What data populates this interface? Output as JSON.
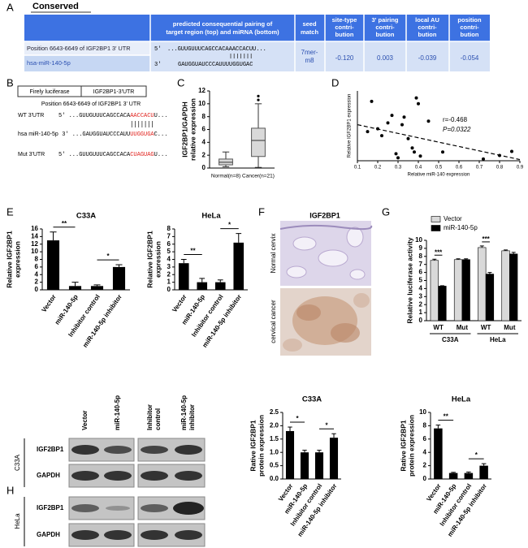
{
  "panel_labels": [
    "A",
    "B",
    "C",
    "D",
    "E",
    "F",
    "G",
    "H"
  ],
  "table_a": {
    "title": "Conserved",
    "header": [
      [
        "predicted consequential pairing of",
        "target region (top) and miRNA (bottom)"
      ],
      [
        "seed",
        "match"
      ],
      [
        "site-type",
        "contri-",
        "bution"
      ],
      [
        "3' pairing",
        "contri-",
        "bution"
      ],
      [
        "local AU",
        "contri-",
        "bution"
      ],
      [
        "position",
        "contri-",
        "bution"
      ]
    ],
    "row": {
      "target": "Position 6643-6649 of IGF2BP1 3' UTR",
      "mirna": "hsa-miR-140-5p",
      "top_end": "5'",
      "top_seq": "...GUUGUUUCAGCCACAAACCACUU...",
      "bottom_end": "3'",
      "bottom_seq": "GAUGGUAUCCCAUUUUGGUGAC",
      "seed_match": [
        "7mer-",
        "m8"
      ],
      "site_type": "-0.120",
      "pairing_3p": "0.003",
      "local_au": "-0.039",
      "position": "-0.054"
    }
  },
  "diagram_b": {
    "reporter": "Firely luciferase",
    "utr": "IGF2BP1-3'UTR",
    "site": "Position 6643-6649 of IGF2BP1 3' UTR",
    "rows": [
      {
        "label": "WT 3'UTR",
        "prefix": "5' ...GUUGUUUCAGCCACA",
        "site": "AACCACU",
        "suffix": "U..."
      },
      {
        "label": "hsa miR-140-5p",
        "prefix": "3' ...GAUGGUAUCCCAUU",
        "site": "UUGGUGA",
        "suffix": "C..."
      },
      {
        "label": "Mut 3'UTR",
        "prefix": "5' ...GUUGUUUCAGCCACA",
        "site": "CUAGUAG",
        "suffix": "U..."
      }
    ]
  },
  "images_f": {
    "title": "IGF2BP1",
    "rows": [
      "Normal cervix",
      "cervical cancer"
    ]
  },
  "blot_h": {
    "lanes": [
      [
        "Vector"
      ],
      [
        "miR-140-5p"
      ],
      [
        "Inhibitor",
        "control"
      ],
      [
        "miR-140-5p",
        "inhibitor"
      ]
    ],
    "cell_lines": [
      "C33A",
      "HeLa"
    ],
    "proteins": [
      "IGF2BP1",
      "GAPDH"
    ]
  },
  "chart_data": [
    {
      "type": "box",
      "y_label": [
        "IGF2BP1/GAPDH",
        "relative expression"
      ],
      "categories": [
        "Normal(n=8)",
        "Cancer(n=21)"
      ],
      "boxes": [
        {
          "min": 0.2,
          "q1": 0.5,
          "median": 0.9,
          "q3": 1.4,
          "max": 2.5,
          "outliers": []
        },
        {
          "min": 0.1,
          "q1": 1.8,
          "median": 4.3,
          "q3": 6.2,
          "max": 10,
          "outliers": [
            10.6,
            11.2
          ]
        }
      ],
      "color": "#d9d9d9",
      "ylim": [
        0,
        12
      ],
      "yticks": [
        0,
        2,
        4,
        6,
        8,
        10,
        12
      ]
    },
    {
      "type": "scatter",
      "x_label": "Relative miR-140 expression",
      "y_label": "Relative IGF2BP1 expression",
      "annotations": [
        "r=-0.468",
        "P=0.0322"
      ],
      "x": [
        0.15,
        0.17,
        0.2,
        0.22,
        0.25,
        0.27,
        0.29,
        0.3,
        0.32,
        0.33,
        0.35,
        0.37,
        0.38,
        0.39,
        0.4,
        0.41,
        0.45,
        0.52,
        0.72,
        0.8,
        0.86
      ],
      "y": [
        5,
        10.2,
        5.5,
        4.3,
        6.5,
        7.8,
        1.2,
        0.5,
        6.2,
        7.5,
        3.8,
        2.2,
        1.5,
        10.8,
        9.8,
        0.8,
        6.8,
        1.5,
        0.3,
        0.9,
        1.6
      ],
      "color": "#000000",
      "trend": {
        "x": [
          0.1,
          0.9
        ],
        "y": [
          6.2,
          0.2
        ]
      },
      "xlim": [
        0.1,
        0.9
      ],
      "ylim": [
        0,
        12
      ],
      "xticks": [
        0.1,
        0.2,
        0.3,
        0.4,
        0.5,
        0.6,
        0.7,
        0.8,
        0.9
      ]
    },
    {
      "type": "bar",
      "title": "C33A",
      "y_label": [
        "Relative IGF2BP1",
        "expression"
      ],
      "categories": [
        "Vector",
        "miR-140-5p",
        "Inhibitor control",
        "miR-140-5p inhibitor"
      ],
      "values": [
        13,
        1,
        1,
        6
      ],
      "errors": [
        2.2,
        1,
        0.3,
        0.6
      ],
      "color": "#000000",
      "ylim": [
        0,
        16
      ],
      "yticks": [
        0,
        2,
        4,
        6,
        8,
        10,
        12,
        14,
        16
      ],
      "significance": [
        {
          "label": "**",
          "between": [
            "Vector",
            "miR-140-5p"
          ]
        },
        {
          "label": "*",
          "between": [
            "Inhibitor control",
            "miR-140-5p inhibitor"
          ]
        }
      ]
    },
    {
      "type": "bar",
      "title": "HeLa",
      "y_label": [
        "Relative IGF2BP1",
        "expression"
      ],
      "categories": [
        "Vector",
        "miR-140-5p",
        "Inhibitor control",
        "miR-140-5p inhibitor"
      ],
      "values": [
        3.5,
        1,
        1,
        6.2
      ],
      "errors": [
        0.5,
        0.5,
        0.3,
        1.2
      ],
      "color": "#000000",
      "ylim": [
        0,
        8
      ],
      "yticks": [
        0,
        1,
        2,
        3,
        4,
        5,
        6,
        7,
        8
      ],
      "significance": [
        {
          "label": "**",
          "between": [
            "Vector",
            "miR-140-5p"
          ]
        },
        {
          "label": "*",
          "between": [
            "Inhibitor control",
            "miR-140-5p inhibitor"
          ]
        }
      ]
    },
    {
      "type": "grouped_bar",
      "y_label": "Relative luciferase activity",
      "categories": [
        "WT",
        "Mut",
        "WT",
        "Mut"
      ],
      "groups": [
        "C33A",
        "HeLa"
      ],
      "series": [
        {
          "name": "Vector",
          "color": "#d9d9d9",
          "values": [
            7.5,
            7.6,
            9.1,
            8.7
          ],
          "errors": [
            0.15,
            0.1,
            0.2,
            0.1
          ]
        },
        {
          "name": "miR-140-5p",
          "color": "#000000",
          "values": [
            4.3,
            7.6,
            5.8,
            8.3
          ],
          "errors": [
            0.05,
            0.1,
            0.2,
            0.2
          ]
        }
      ],
      "significance": [
        "***",
        null,
        "***",
        null
      ],
      "legend": "top",
      "ylim": [
        0,
        10
      ],
      "yticks": [
        0,
        1,
        2,
        3,
        4,
        5,
        6,
        7,
        8,
        9,
        10
      ]
    },
    {
      "type": "bar",
      "title": "C33A",
      "y_label": [
        "Rative IGF2BP1",
        "protein expression"
      ],
      "categories": [
        "Vector",
        "miR-140-5p",
        "Inhibitor control",
        "miR-140-5p inhibitor"
      ],
      "values": [
        1.8,
        1.0,
        1.0,
        1.55
      ],
      "errors": [
        0.15,
        0.08,
        0.08,
        0.15
      ],
      "color": "#000000",
      "ylim": [
        0,
        2.5
      ],
      "yticks": [
        {
          "value": 0,
          "label": "0.0"
        },
        0.5,
        {
          "value": 1,
          "label": "1.0"
        },
        1.5,
        {
          "value": 2,
          "label": "2.0"
        },
        2.5
      ],
      "significance": [
        {
          "label": "*",
          "between": [
            "Vector",
            "miR-140-5p"
          ]
        },
        {
          "label": "*",
          "between": [
            "Inhibitor control",
            "miR-140-5p inhibitor"
          ]
        }
      ]
    },
    {
      "type": "bar",
      "title": "HeLa",
      "y_label": [
        "Rative IGF2BP1",
        "protein expression"
      ],
      "categories": [
        "Vector",
        "miR-140-5p",
        "Inhibitor control",
        "miR-140-5p inhibitor"
      ],
      "values": [
        7.6,
        0.9,
        0.9,
        2.0
      ],
      "errors": [
        0.5,
        0.1,
        0.15,
        0.3
      ],
      "color": "#000000",
      "ylim": [
        0,
        10
      ],
      "yticks": [
        0,
        2,
        4,
        6,
        8,
        10
      ],
      "significance": [
        {
          "label": "**",
          "between": [
            "Vector",
            "miR-140-5p"
          ]
        },
        {
          "label": "*",
          "between": [
            "Inhibitor control",
            "miR-140-5p inhibitor"
          ]
        }
      ]
    }
  ]
}
